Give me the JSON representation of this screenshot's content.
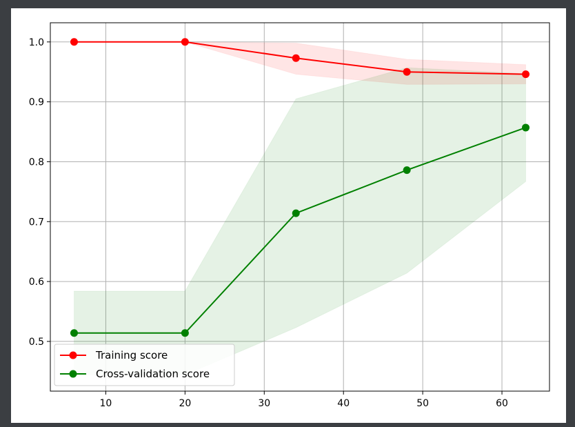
{
  "chart_data": {
    "type": "line",
    "title": "",
    "xlabel": "",
    "ylabel": "",
    "xlim": [
      3,
      66
    ],
    "ylim": [
      0.417,
      1.032
    ],
    "xticks": [
      10,
      20,
      30,
      40,
      50,
      60
    ],
    "yticks": [
      0.5,
      0.6,
      0.7,
      0.8,
      0.9,
      1.0
    ],
    "xtick_labels": [
      "10",
      "20",
      "30",
      "40",
      "50",
      "60"
    ],
    "ytick_labels": [
      "0.5",
      "0.6",
      "0.7",
      "0.8",
      "0.9",
      "1.0"
    ],
    "grid": true,
    "legend_position": "lower-left",
    "x": [
      6,
      20,
      34,
      48,
      63
    ],
    "series": [
      {
        "name": "Training score",
        "color": "#ff0000",
        "values": [
          1.0,
          1.0,
          0.973,
          0.95,
          0.946
        ],
        "band_lower": [
          1.0,
          1.0,
          0.946,
          0.929,
          0.93
        ],
        "band_upper": [
          1.0,
          1.0,
          0.998,
          0.971,
          0.962
        ]
      },
      {
        "name": "Cross-validation score",
        "color": "#008000",
        "values": [
          0.514,
          0.514,
          0.714,
          0.786,
          0.857
        ],
        "band_lower": [
          0.444,
          0.444,
          0.523,
          0.614,
          0.767
        ],
        "band_upper": [
          0.584,
          0.584,
          0.905,
          0.957,
          0.947
        ]
      }
    ]
  }
}
